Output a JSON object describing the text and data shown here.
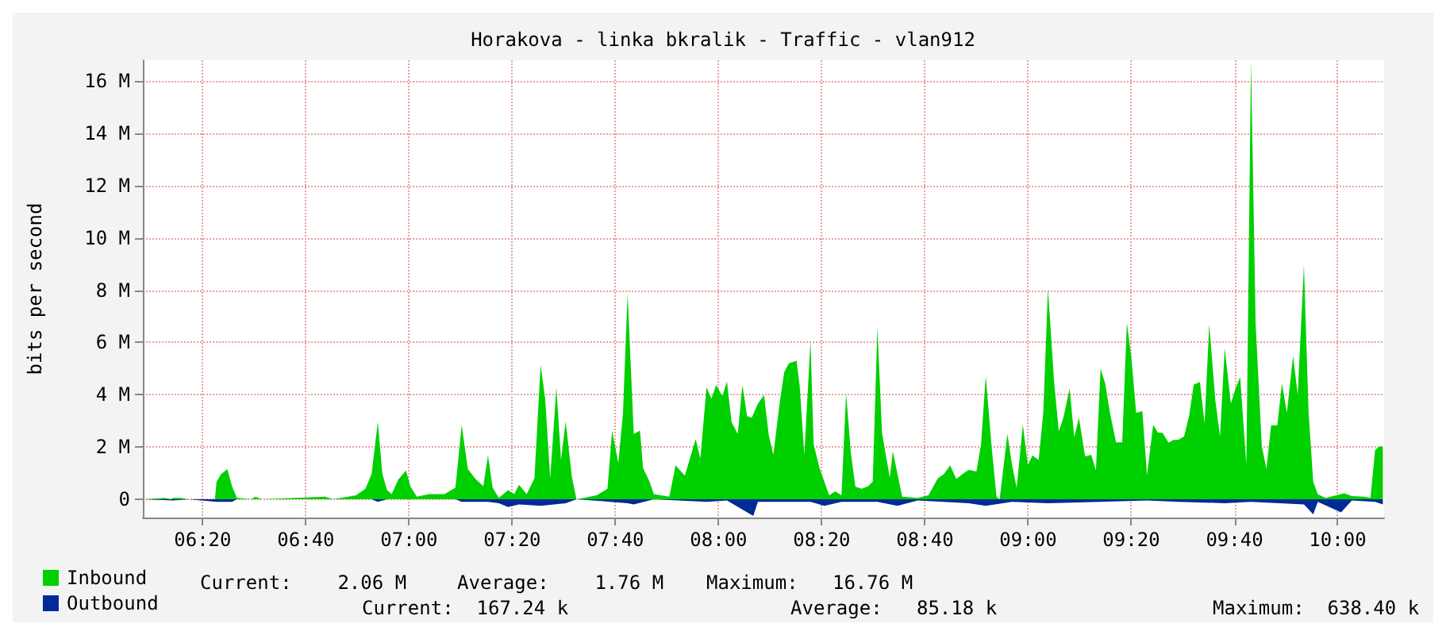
{
  "chart_data": {
    "type": "area",
    "title": "Horakova - linka bkralik - Traffic - vlan912",
    "ylabel": "bits per second",
    "xlim": [
      6.14,
      10.15
    ],
    "xticks": [
      {
        "value": 6.3333,
        "label": "06:20"
      },
      {
        "value": 6.6667,
        "label": "06:40"
      },
      {
        "value": 7,
        "label": "07:00"
      },
      {
        "value": 7.3333,
        "label": "07:20"
      },
      {
        "value": 7.6667,
        "label": "07:40"
      },
      {
        "value": 8,
        "label": "08:00"
      },
      {
        "value": 8.3333,
        "label": "08:20"
      },
      {
        "value": 8.6667,
        "label": "08:40"
      },
      {
        "value": 9,
        "label": "09:00"
      },
      {
        "value": 9.3333,
        "label": "09:20"
      },
      {
        "value": 9.6667,
        "label": "09:40"
      },
      {
        "value": 10,
        "label": "10:00"
      }
    ],
    "ylim": [
      -0.7,
      16.8
    ],
    "yticks": [
      0,
      {
        "value": 2,
        "label": "2 M"
      },
      {
        "value": 4,
        "label": "4 M"
      },
      {
        "value": 6,
        "label": "6 M"
      },
      {
        "value": 8,
        "label": "8 M"
      },
      {
        "value": 10,
        "label": "10 M"
      },
      {
        "value": 12,
        "label": "12 M"
      },
      {
        "value": 14,
        "label": "14 M"
      },
      {
        "value": 16,
        "label": "16 M"
      }
    ],
    "grid": true,
    "legend": "bottom left",
    "series": [
      {
        "name": "Inbound",
        "color": "#00cf00",
        "x": [
          6.143,
          6.213,
          6.228,
          6.238,
          6.263,
          6.288,
          6.373,
          6.378,
          6.393,
          6.413,
          6.428,
          6.444,
          6.489,
          6.504,
          6.524,
          6.729,
          6.754,
          6.829,
          6.859,
          6.879,
          6.899,
          6.914,
          6.929,
          6.944,
          6.965,
          6.99,
          7.005,
          7.025,
          7.065,
          7.115,
          7.15,
          7.17,
          7.19,
          7.215,
          7.24,
          7.255,
          7.27,
          7.29,
          7.32,
          7.34,
          7.355,
          7.38,
          7.405,
          7.425,
          7.44,
          7.456,
          7.476,
          7.491,
          7.506,
          7.526,
          7.541,
          7.606,
          7.641,
          7.656,
          7.676,
          7.691,
          7.706,
          7.726,
          7.746,
          7.756,
          7.776,
          7.791,
          7.841,
          7.861,
          7.891,
          7.926,
          7.941,
          7.961,
          7.977,
          7.992,
          8.012,
          8.027,
          8.042,
          8.062,
          8.077,
          8.092,
          8.107,
          8.127,
          8.147,
          8.162,
          8.177,
          8.197,
          8.212,
          8.227,
          8.252,
          8.262,
          8.277,
          8.297,
          8.307,
          8.327,
          8.342,
          8.357,
          8.377,
          8.397,
          8.412,
          8.427,
          8.442,
          8.463,
          8.483,
          8.498,
          8.513,
          8.528,
          8.553,
          8.563,
          8.578,
          8.593,
          8.643,
          8.678,
          8.708,
          8.728,
          8.748,
          8.768,
          8.788,
          8.808,
          8.833,
          8.848,
          8.863,
          8.883,
          8.898,
          8.908,
          8.933,
          8.948,
          8.963,
          8.983,
          8.999,
          9.014,
          9.034,
          9.049,
          9.064,
          9.084,
          9.099,
          9.114,
          9.134,
          9.149,
          9.164,
          9.184,
          9.204,
          9.219,
          9.234,
          9.249,
          9.264,
          9.284,
          9.304,
          9.319,
          9.334,
          9.349,
          9.369,
          9.384,
          9.404,
          9.419,
          9.434,
          9.454,
          9.469,
          9.484,
          9.504,
          9.52,
          9.535,
          9.555,
          9.57,
          9.585,
          9.605,
          9.62,
          9.635,
          9.655,
          9.67,
          9.685,
          9.705,
          9.72,
          9.735,
          9.755,
          9.77,
          9.785,
          9.805,
          9.82,
          9.836,
          9.856,
          9.871,
          9.891,
          9.906,
          9.921,
          9.936,
          9.961,
          10.021,
          10.046,
          10.086,
          10.106,
          10.121,
          10.136,
          10.146
        ],
        "values": [
          0,
          0.05,
          0,
          0.05,
          0.05,
          0,
          0,
          0.67,
          0.96,
          1.15,
          0.5,
          0.05,
          0,
          0.1,
          0,
          0.1,
          0,
          0.15,
          0.4,
          0.96,
          2.95,
          0.96,
          0.35,
          0.2,
          0.75,
          1.1,
          0.48,
          0.1,
          0.2,
          0.2,
          0.45,
          2.83,
          1.15,
          0.77,
          0.5,
          1.68,
          0.45,
          0.05,
          0.35,
          0.2,
          0.55,
          0.2,
          0.8,
          5.14,
          3.83,
          0.8,
          4.28,
          1.5,
          2.98,
          0.86,
          0,
          0.15,
          0.4,
          2.63,
          1.38,
          3.27,
          7.86,
          2.5,
          2.63,
          1.2,
          0.7,
          0.2,
          0.1,
          1.3,
          0.9,
          2.3,
          1.56,
          4.28,
          3.85,
          4.37,
          3.95,
          4.5,
          2.95,
          2.5,
          4.37,
          3.18,
          3.12,
          3.66,
          3.99,
          2.45,
          1.7,
          3.66,
          4.87,
          5.2,
          5.3,
          4.33,
          1.7,
          6.07,
          2.1,
          1.15,
          0.67,
          0.15,
          0.3,
          0.15,
          4.05,
          1.8,
          0.48,
          0.4,
          0.5,
          0.67,
          6.59,
          2.54,
          0.83,
          1.83,
          0.96,
          0.1,
          0.05,
          0.15,
          0.8,
          0.96,
          1.3,
          0.77,
          0.96,
          1.12,
          1.06,
          2.12,
          4.72,
          1.89,
          0.1,
          0,
          2.5,
          1.31,
          0.44,
          2.85,
          1.31,
          1.68,
          1.5,
          3.33,
          8.05,
          4.49,
          2.6,
          3.12,
          4.24,
          2.37,
          3.12,
          1.64,
          1.7,
          1.1,
          5.0,
          4.43,
          3.33,
          2.18,
          2.18,
          6.76,
          5.36,
          3.31,
          3.37,
          0.92,
          2.85,
          2.56,
          2.54,
          2.16,
          2.27,
          2.27,
          2.41,
          3.18,
          4.39,
          4.49,
          2.89,
          6.7,
          3.76,
          2.41,
          5.78,
          3.66,
          4.24,
          4.68,
          1.31,
          16.76,
          6.7,
          2.02,
          1.16,
          2.83,
          2.83,
          4.43,
          3.31,
          5.49,
          3.99,
          8.96,
          3.33,
          0.67,
          0.19,
          0.05,
          0.23,
          0.12,
          0.1,
          0.05,
          1.89,
          2.02,
          2.02
        ]
      },
      {
        "name": "Outbound",
        "color": "#002a97",
        "x": [
          6.143,
          6.238,
          6.288,
          6.378,
          6.428,
          6.444,
          6.879,
          6.899,
          6.929,
          7.15,
          7.17,
          7.255,
          7.29,
          7.32,
          7.355,
          7.425,
          7.506,
          7.541,
          7.706,
          7.726,
          7.791,
          7.961,
          8.027,
          8.112,
          8.127,
          8.297,
          8.342,
          8.397,
          8.513,
          8.578,
          8.643,
          8.808,
          8.863,
          8.948,
          9.064,
          9.234,
          9.384,
          9.484,
          9.635,
          9.72,
          9.891,
          9.921,
          9.936,
          10.011,
          10.046,
          10.121,
          10.146
        ],
        "values": [
          0,
          -0.05,
          0,
          -0.1,
          -0.1,
          0,
          0,
          -0.1,
          0,
          0,
          -0.1,
          -0.1,
          -0.15,
          -0.3,
          -0.2,
          -0.25,
          -0.15,
          0,
          -0.15,
          -0.2,
          0,
          -0.1,
          -0.05,
          -0.64,
          -0.1,
          -0.1,
          -0.25,
          -0.1,
          -0.1,
          -0.25,
          -0.05,
          -0.15,
          -0.25,
          -0.1,
          -0.15,
          -0.1,
          -0.05,
          -0.1,
          -0.15,
          -0.1,
          -0.2,
          -0.58,
          -0.1,
          -0.5,
          -0.05,
          -0.1,
          -0.2
        ]
      }
    ],
    "annotations": [
      "Current:    2.06 M",
      "Average:    1.76 M",
      "Maximum:   16.76 M",
      "Current:  167.24 k",
      "Average:   85.18 k",
      "Maximum:  638.40 k"
    ]
  }
}
